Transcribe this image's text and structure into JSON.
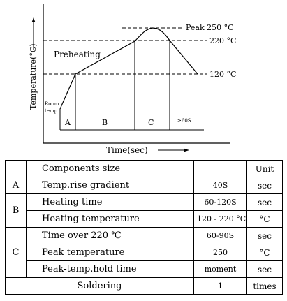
{
  "chart": {
    "y_axis_label": "Temperature(°C)",
    "x_axis_label": "Time(sec)",
    "preheating_label": "Preheating",
    "room_temp_label": [
      "Room",
      "temp"
    ],
    "peak_label": "Peak 250 °C",
    "level_220_label": "220 °C",
    "level_120_label": "120 °C",
    "zones": [
      "A",
      "B",
      "C",
      "≥60S"
    ]
  },
  "table": {
    "header": {
      "components": "Components size",
      "unit": "Unit"
    },
    "rows": [
      {
        "zone": "A",
        "name": "Temp.rise gradient",
        "value": "40S",
        "unit": "sec"
      },
      {
        "zone": "B",
        "name": "Heating time",
        "value": "60-120S",
        "unit": "sec"
      },
      {
        "zone": "",
        "name": "Heating temperature",
        "value": "120 - 220 °C",
        "unit": "°C"
      },
      {
        "zone": "C",
        "name": "Time over 220 ℃",
        "value": "60-90S",
        "unit": "sec"
      },
      {
        "zone": "",
        "name": "Peak temperature",
        "value": "250",
        "unit": "°C"
      },
      {
        "zone": "",
        "name": "Peak-temp.hold time",
        "value": "moment",
        "unit": "sec"
      }
    ],
    "footer": {
      "label": "Soldering",
      "value": "1",
      "unit": "times"
    }
  }
}
